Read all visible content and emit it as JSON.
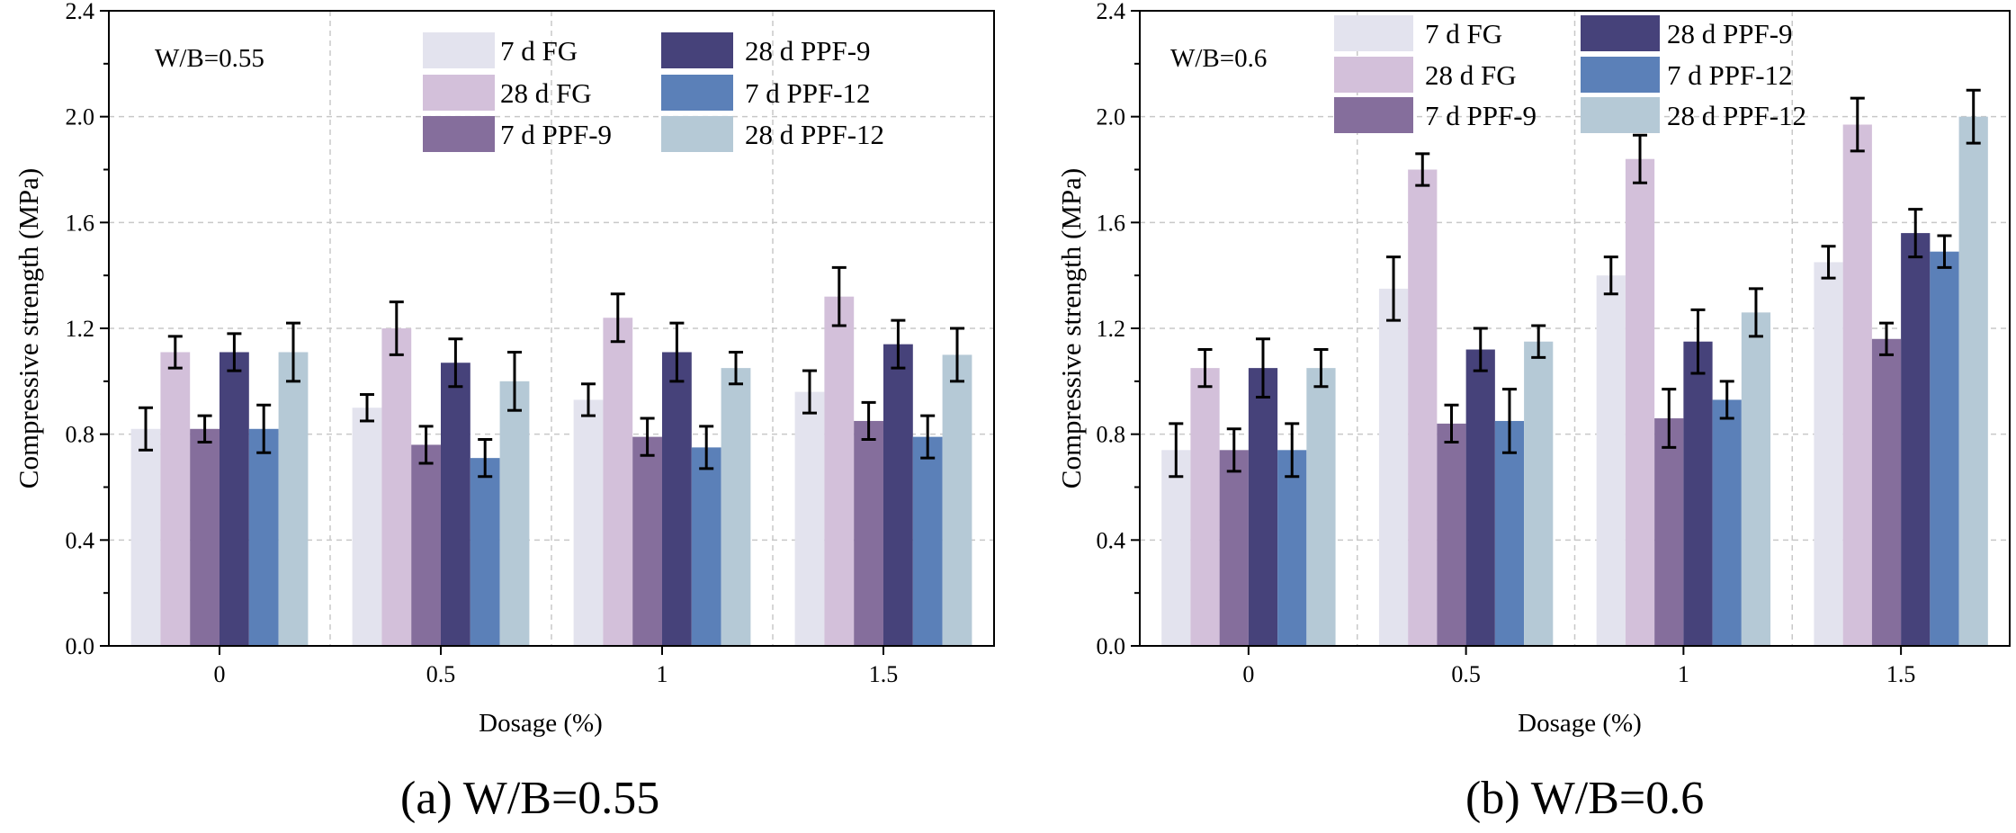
{
  "chart_data": [
    {
      "type": "bar",
      "panel": "a",
      "caption": "(a) W/B=0.55",
      "annotation": "W/B=0.55",
      "xlabel": "Dosage (%)",
      "ylabel": "Compressive strength (MPa)",
      "categories": [
        "0",
        "0.5",
        "1",
        "1.5"
      ],
      "ylim": [
        0,
        2.4
      ],
      "yticks": [
        "0.0",
        "0.4",
        "0.8",
        "1.2",
        "1.6",
        "2.0",
        "2.4"
      ],
      "grid": true,
      "legend_position": "top",
      "series": [
        {
          "name": "7 d FG",
          "color": "#e3e3ee",
          "values": [
            0.82,
            0.9,
            0.93,
            0.96
          ],
          "errors": [
            0.08,
            0.05,
            0.06,
            0.08
          ]
        },
        {
          "name": "28 d FG",
          "color": "#d3c0da",
          "values": [
            1.11,
            1.2,
            1.24,
            1.32
          ],
          "errors": [
            0.06,
            0.1,
            0.09,
            0.11
          ]
        },
        {
          "name": "7 d PPF-9",
          "color": "#856e9c",
          "values": [
            0.82,
            0.76,
            0.79,
            0.85
          ],
          "errors": [
            0.05,
            0.07,
            0.07,
            0.07
          ]
        },
        {
          "name": "28 d PPF-9",
          "color": "#46427a",
          "values": [
            1.11,
            1.07,
            1.11,
            1.14
          ],
          "errors": [
            0.07,
            0.09,
            0.11,
            0.09
          ]
        },
        {
          "name": "7 d PPF-12",
          "color": "#5b80b8",
          "values": [
            0.82,
            0.71,
            0.75,
            0.79
          ],
          "errors": [
            0.09,
            0.07,
            0.08,
            0.08
          ]
        },
        {
          "name": "28 d PPF-12",
          "color": "#b5c9d6",
          "values": [
            1.11,
            1.0,
            1.05,
            1.1
          ],
          "errors": [
            0.11,
            0.11,
            0.06,
            0.1
          ]
        }
      ]
    },
    {
      "type": "bar",
      "panel": "b",
      "caption": "(b) W/B=0.6",
      "annotation": "W/B=0.6",
      "xlabel": "Dosage (%)",
      "ylabel": "Compressive strength (MPa)",
      "categories": [
        "0",
        "0.5",
        "1",
        "1.5"
      ],
      "ylim": [
        0,
        2.4
      ],
      "yticks": [
        "0.0",
        "0.4",
        "0.8",
        "1.2",
        "1.6",
        "2.0",
        "2.4"
      ],
      "grid": true,
      "legend_position": "top",
      "series": [
        {
          "name": "7 d FG",
          "color": "#e3e3ee",
          "values": [
            0.74,
            1.35,
            1.4,
            1.45
          ],
          "errors": [
            0.1,
            0.12,
            0.07,
            0.06
          ]
        },
        {
          "name": "28 d FG",
          "color": "#d3c0da",
          "values": [
            1.05,
            1.8,
            1.84,
            1.97
          ],
          "errors": [
            0.07,
            0.06,
            0.09,
            0.1
          ]
        },
        {
          "name": "7 d PPF-9",
          "color": "#856e9c",
          "values": [
            0.74,
            0.84,
            0.86,
            1.16
          ],
          "errors": [
            0.08,
            0.07,
            0.11,
            0.06
          ]
        },
        {
          "name": "28 d PPF-9",
          "color": "#46427a",
          "values": [
            1.05,
            1.12,
            1.15,
            1.56
          ],
          "errors": [
            0.11,
            0.08,
            0.12,
            0.09
          ]
        },
        {
          "name": "7 d PPF-12",
          "color": "#5b80b8",
          "values": [
            0.74,
            0.85,
            0.93,
            1.49
          ],
          "errors": [
            0.1,
            0.12,
            0.07,
            0.06
          ]
        },
        {
          "name": "28 d PPF-12",
          "color": "#b5c9d6",
          "values": [
            1.05,
            1.15,
            1.26,
            2.0
          ],
          "errors": [
            0.07,
            0.06,
            0.09,
            0.1
          ]
        }
      ]
    }
  ]
}
